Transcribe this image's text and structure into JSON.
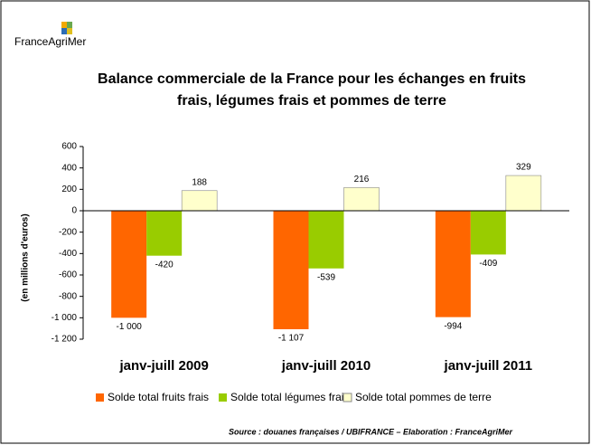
{
  "logo": "FranceAgriMer",
  "source": "Source : douanes françaises / UBIFRANCE – Elaboration : FranceAgriMer",
  "chart_data": {
    "type": "bar",
    "title": "Balance commerciale de la France pour les échanges en fruits frais, légumes frais et pommes de terre",
    "y_label": "(en millions d'euros)",
    "categories": [
      "janv-juill 2009",
      "janv-juill 2010",
      "janv-juill 2011"
    ],
    "series": [
      {
        "name": "Solde total fruits frais",
        "color": "#ff6600",
        "values": [
          -1000,
          -1107,
          -994
        ],
        "value_labels": [
          "-1 000",
          "-1 107",
          "-994"
        ]
      },
      {
        "name": "Solde total légumes frais",
        "color": "#99cc00",
        "values": [
          -420,
          -539,
          -409
        ]
      },
      {
        "name": "Solde total pommes de terre",
        "color": "#ffffcc",
        "values": [
          188,
          216,
          329
        ]
      }
    ],
    "ylim": [
      -1200,
      600
    ],
    "yticks": [
      600,
      400,
      200,
      0,
      -200,
      -400,
      -600,
      -800,
      {
        "value": -1000,
        "label": "-1 000"
      },
      {
        "value": -1200,
        "label": "-1 200"
      }
    ],
    "legend": "bottom"
  }
}
